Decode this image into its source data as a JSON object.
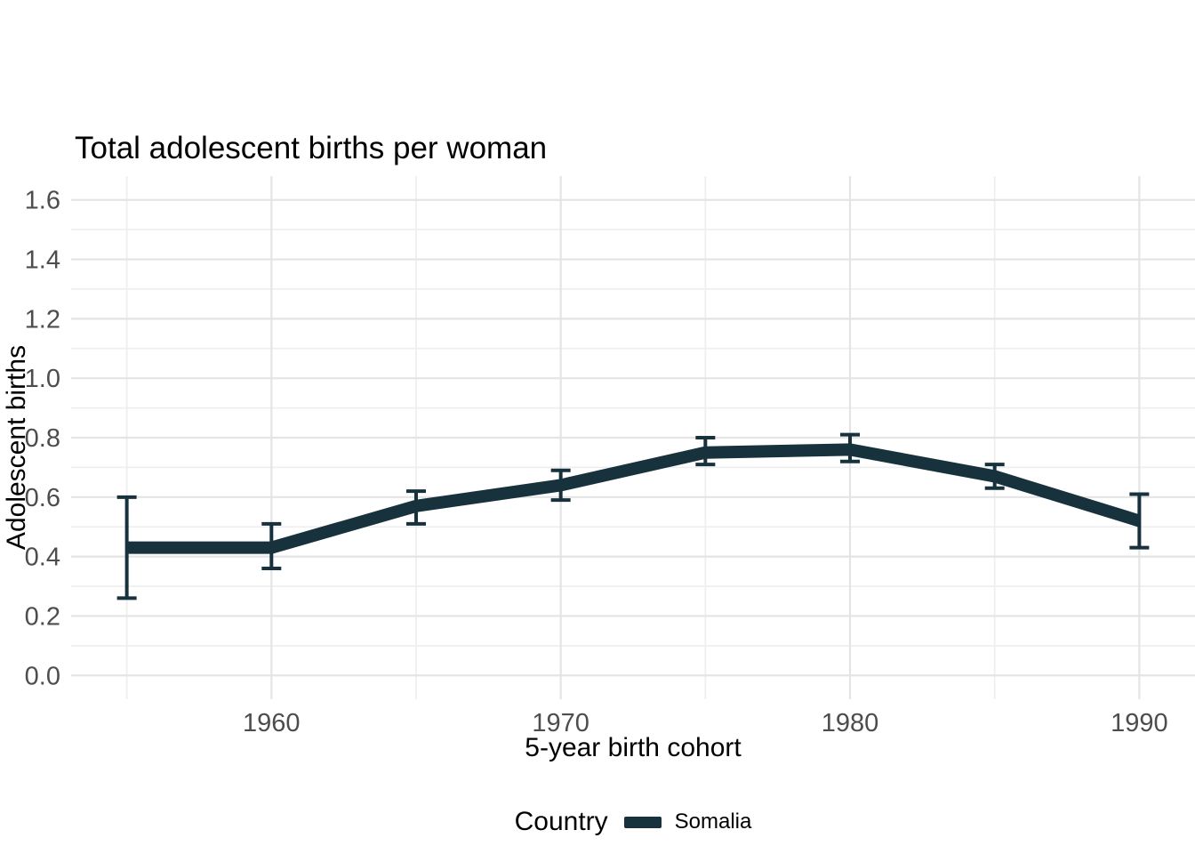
{
  "chart_data": {
    "type": "line",
    "title": "Total adolescent births per woman",
    "xlabel": "5-year birth cohort",
    "ylabel": "Adolescent births",
    "x": [
      1955,
      1960,
      1965,
      1970,
      1975,
      1980,
      1985,
      1990
    ],
    "series": [
      {
        "name": "Somalia",
        "color": "#17323D",
        "values": [
          0.43,
          0.43,
          0.57,
          0.64,
          0.75,
          0.76,
          0.67,
          0.52
        ],
        "lower": [
          0.26,
          0.36,
          0.51,
          0.59,
          0.71,
          0.72,
          0.63,
          0.43
        ],
        "upper": [
          0.6,
          0.51,
          0.62,
          0.69,
          0.8,
          0.81,
          0.71,
          0.61
        ]
      }
    ],
    "error_bars": true,
    "xlim": [
      1955,
      1990
    ],
    "ylim": [
      0,
      1.6
    ],
    "x_axis": {
      "major_ticks": [
        1960,
        1970,
        1980,
        1990
      ],
      "major_labels": [
        "1960",
        "1970",
        "1980",
        "1990"
      ],
      "minor_ticks": [
        1955,
        1965,
        1975,
        1985
      ]
    },
    "y_axis": {
      "major_ticks": [
        0.0,
        0.2,
        0.4,
        0.6,
        0.8,
        1.0,
        1.2,
        1.4,
        1.6
      ],
      "major_labels": [
        "0.0",
        "0.2",
        "0.4",
        "0.6",
        "0.8",
        "1.0",
        "1.2",
        "1.4",
        "1.6"
      ],
      "minor_ticks": [
        0.1,
        0.3,
        0.5,
        0.7,
        0.9,
        1.1,
        1.3,
        1.5
      ]
    },
    "grid": true,
    "legend": {
      "position": "bottom",
      "title": "Country",
      "entries": [
        {
          "label": "Somalia",
          "color": "#17323D"
        }
      ]
    },
    "colors": {
      "background": "#ffffff",
      "grid_major": "#e4e4e4",
      "grid_minor": "#efefef",
      "tick_text": "#4d4d4d",
      "text": "#000000",
      "line": "#17323D"
    }
  }
}
